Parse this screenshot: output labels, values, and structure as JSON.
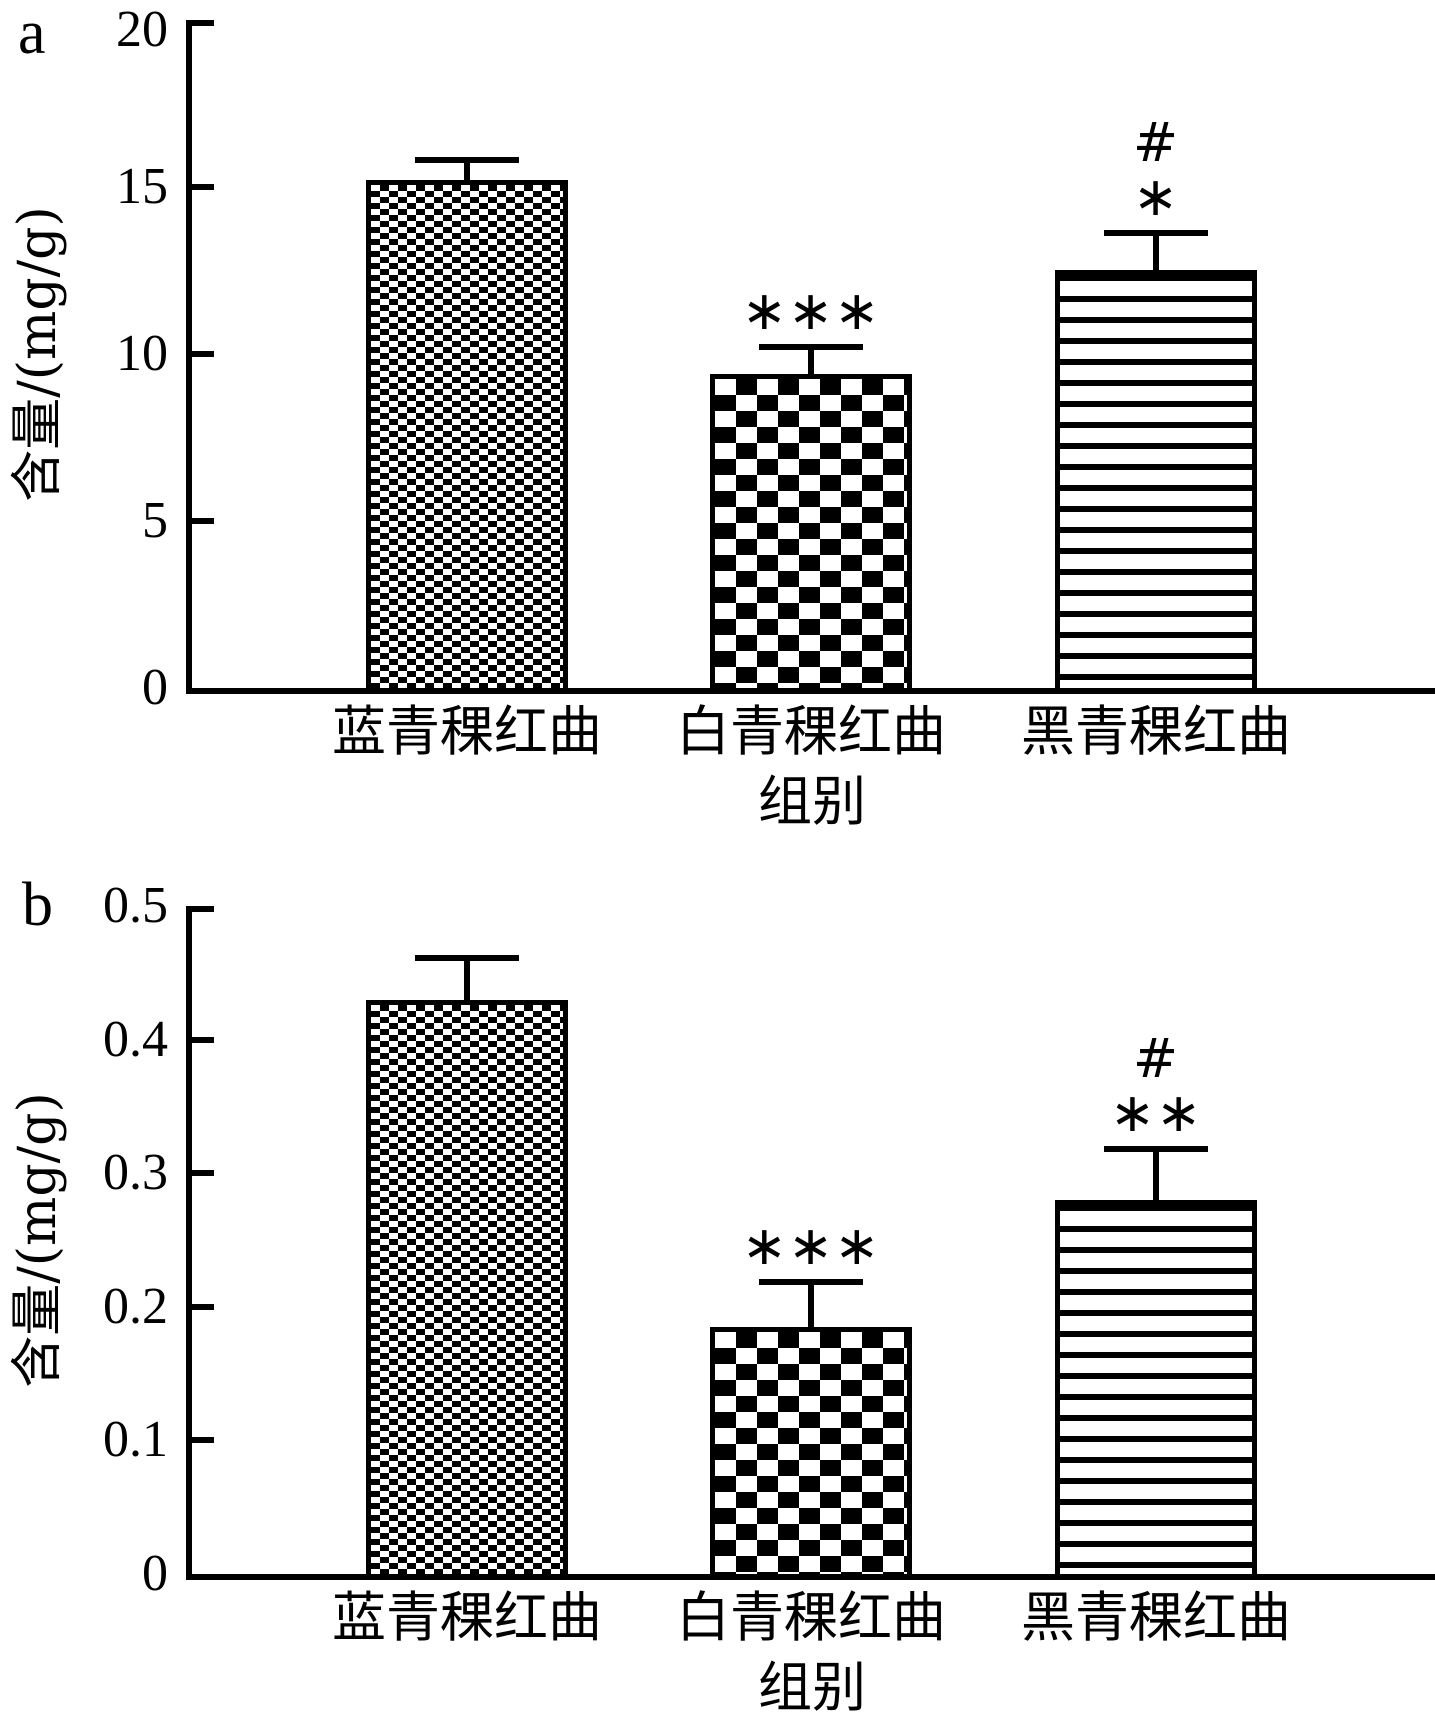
{
  "figure": {
    "background_color": "#ffffff",
    "ink_color": "#000000",
    "description_texts": {
      "panel_a_label": "a",
      "panel_b_label": "b",
      "y_axis_title": "含量/(mg/g)",
      "x_axis_title": "组别"
    }
  },
  "chart_data": [
    {
      "type": "bar",
      "panel_label": "a",
      "title": "",
      "xlabel": "组别",
      "ylabel": "含量/(mg/g)",
      "categories": [
        "蓝青稞红曲",
        "白青稞红曲",
        "黑青稞红曲"
      ],
      "values": [
        15.2,
        9.4,
        12.5
      ],
      "errors_plus": [
        0.7,
        0.9,
        1.2
      ],
      "significance": [
        [],
        [
          "***"
        ],
        [
          "#",
          "*"
        ]
      ],
      "ylim": [
        0,
        20
      ],
      "yticks": [
        0,
        5,
        10,
        15,
        20
      ],
      "ytick_labels": [
        "0",
        "5",
        "10",
        "15",
        "20"
      ],
      "bar_patterns": [
        "dense-check",
        "checkerboard",
        "horizontal-stripes"
      ],
      "bar_fill": "#000000",
      "grid": false,
      "legend": null
    },
    {
      "type": "bar",
      "panel_label": "b",
      "title": "",
      "xlabel": "组别",
      "ylabel": "含量/(mg/g)",
      "categories": [
        "蓝青稞红曲",
        "白青稞红曲",
        "黑青稞红曲"
      ],
      "values": [
        0.43,
        0.185,
        0.28
      ],
      "errors_plus": [
        0.033,
        0.036,
        0.04
      ],
      "significance": [
        [],
        [
          "***"
        ],
        [
          "#",
          "**"
        ]
      ],
      "ylim": [
        0,
        0.5
      ],
      "yticks": [
        0,
        0.1,
        0.2,
        0.3,
        0.4,
        0.5
      ],
      "ytick_labels": [
        "0",
        "0.1",
        "0.2",
        "0.3",
        "0.4",
        "0.5"
      ],
      "bar_patterns": [
        "dense-check",
        "checkerboard",
        "horizontal-stripes"
      ],
      "bar_fill": "#000000",
      "grid": false,
      "legend": null
    }
  ]
}
